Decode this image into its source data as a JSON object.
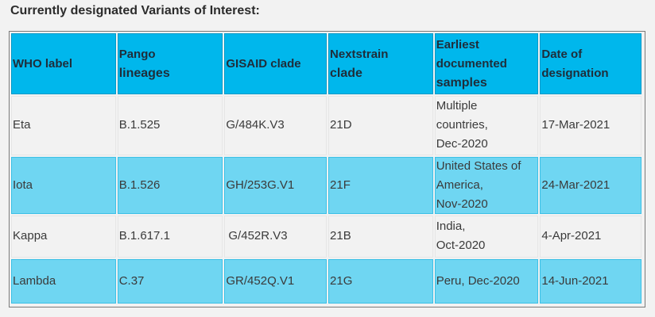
{
  "heading": "Currently designated Variants of Interest:",
  "table": {
    "headers": [
      [
        "WHO label"
      ],
      [
        "Pango",
        "lineages"
      ],
      [
        "GISAID clade"
      ],
      [
        "Nextstrain",
        "clade"
      ],
      [
        "Earliest",
        "documented",
        "samples"
      ],
      [
        "Date of",
        "designation"
      ]
    ],
    "rows": [
      {
        "who_label": "Eta",
        "pango": "B.1.525",
        "gisaid": "G/484K.V3",
        "nextstrain": "21D",
        "earliest": [
          "Multiple",
          "countries,",
          "Dec-2020"
        ],
        "date": "17-Mar-2021"
      },
      {
        "who_label": "Iota",
        "pango": "B.1.526",
        "gisaid": "GH/253G.V1",
        "nextstrain": "21F",
        "earliest": [
          "United States of",
          "America,",
          "Nov-2020"
        ],
        "date": "24-Mar-2021"
      },
      {
        "who_label": "Kappa",
        "pango": "B.1.617.1",
        "gisaid": "G/452R.V3",
        "nextstrain": "21B",
        "earliest": [
          "India,",
          "Oct-2020"
        ],
        "date": "4-Apr-2021"
      },
      {
        "who_label": "Lambda",
        "pango": "C.37",
        "gisaid": "GR/452Q.V1",
        "nextstrain": "21G",
        "earliest": [
          "Peru, Dec-2020"
        ],
        "date": "14-Jun-2021"
      }
    ]
  },
  "colors": {
    "header_bg": "#00b7ec",
    "row_blue_bg": "#6fd6f2",
    "row_white_bg": "#f2f2f2"
  }
}
